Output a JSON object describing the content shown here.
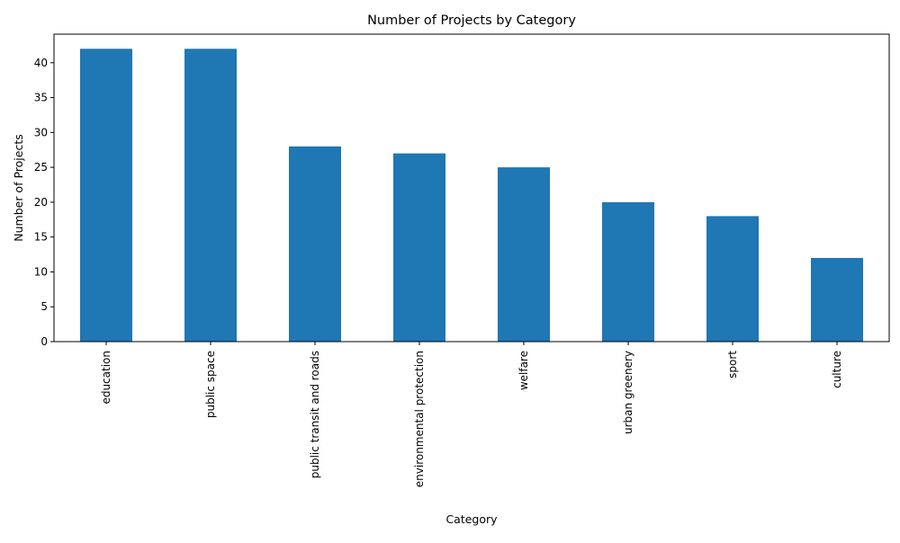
{
  "chart_data": {
    "type": "bar",
    "title": "Number of Projects by Category",
    "xlabel": "Category",
    "ylabel": "Number of Projects",
    "categories": [
      "education",
      "public space",
      "public transit and roads",
      "environmental protection",
      "welfare",
      "urban greenery",
      "sport",
      "culture"
    ],
    "values": [
      42,
      42,
      28,
      27,
      25,
      20,
      18,
      12
    ],
    "ylim": [
      0,
      44.1
    ],
    "yticks": [
      0,
      5,
      10,
      15,
      20,
      25,
      30,
      35,
      40
    ],
    "grid": false,
    "bar_color": "#1f77b4"
  }
}
